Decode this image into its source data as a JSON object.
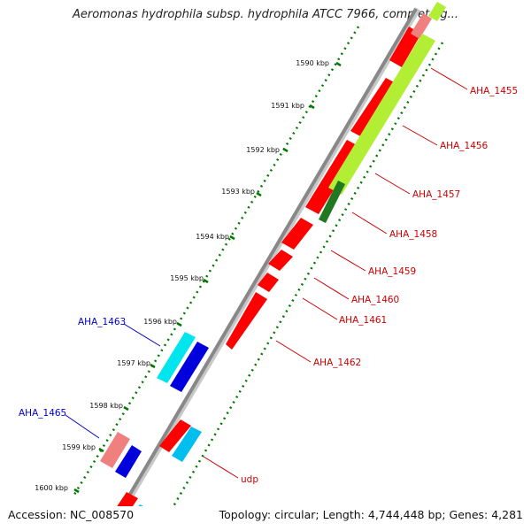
{
  "map": {
    "title": "Aeromonas hydrophila subsp. hydrophila ATCC 7966, complete g...",
    "accession": "Accession: NC_008570",
    "topology": "Topology: circular; Length: 4,744,448 bp; Genes: 4,281"
  },
  "scale": {
    "ticks": [
      "1590 kbp",
      "1591 kbp",
      "1592 kbp",
      "1593 kbp",
      "1594 kbp",
      "1595 kbp",
      "1596 kbp",
      "1597 kbp",
      "1598 kbp",
      "1599 kbp",
      "1600 kbp"
    ]
  },
  "gene_labels": [
    {
      "text": "AHA_1455",
      "color": "red"
    },
    {
      "text": "AHA_1456",
      "color": "red"
    },
    {
      "text": "AHA_1457",
      "color": "red"
    },
    {
      "text": "AHA_1458",
      "color": "red"
    },
    {
      "text": "AHA_1459",
      "color": "red"
    },
    {
      "text": "AHA_1460",
      "color": "red"
    },
    {
      "text": "AHA_1461",
      "color": "red"
    },
    {
      "text": "AHA_1462",
      "color": "red"
    },
    {
      "text": "AHA_1463",
      "color": "blue"
    },
    {
      "text": "AHA_1465",
      "color": "blue"
    },
    {
      "text": "udp",
      "color": "red"
    }
  ],
  "colors": {
    "backbone": "#888888",
    "forward_cds": "#ff0000",
    "forward_highlight": "#f08080",
    "green_feature": "#b2ee33",
    "dark_green_feature": "#227722",
    "cyan_feature": "#00e5ee",
    "blue_feature": "#0000dd",
    "tick_dots": "#007700",
    "label_red": "#cc0000",
    "label_blue": "#0000cc"
  }
}
